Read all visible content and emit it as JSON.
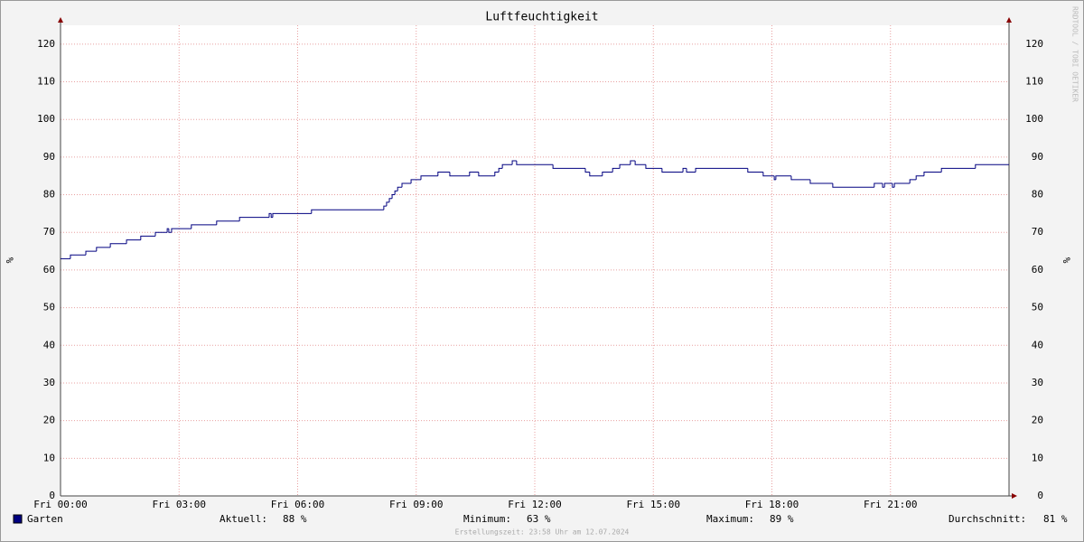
{
  "chart_data": {
    "type": "step-line",
    "title": "Luftfeuchtigkeit",
    "y_label": "%",
    "watermark": "RRDTOOL / TOBI OETIKER",
    "x": [
      0,
      0.25,
      0.64,
      0.91,
      1.26,
      1.67,
      2.03,
      2.4,
      2.7,
      2.74,
      2.81,
      3.31,
      3.95,
      4.53,
      5.28,
      5.33,
      5.37,
      6.35,
      8.18,
      8.25,
      8.32,
      8.39,
      8.46,
      8.53,
      8.64,
      8.87,
      9.12,
      9.55,
      9.85,
      10.35,
      10.58,
      10.99,
      11.09,
      11.18,
      11.43,
      11.54,
      12.46,
      13.28,
      13.39,
      13.71,
      13.97,
      14.15,
      14.42,
      14.54,
      14.81,
      15.22,
      15.75,
      15.84,
      16.07,
      17.39,
      17.78,
      18.06,
      18.1,
      18.49,
      18.97,
      19.54,
      20.59,
      20.8,
      20.85,
      21.05,
      21.1,
      21.49,
      21.65,
      21.85,
      22.29,
      23.15,
      24
    ],
    "series": [
      {
        "name": "Garten",
        "color": "#000080",
        "values": [
          63,
          64,
          65,
          66,
          67,
          68,
          69,
          70,
          71,
          70,
          71,
          72,
          73,
          74,
          75,
          74,
          75,
          76,
          77,
          78,
          79,
          80,
          81,
          82,
          83,
          84,
          85,
          86,
          85,
          86,
          85,
          86,
          87,
          88,
          89,
          88,
          87,
          86,
          85,
          86,
          87,
          88,
          89,
          88,
          87,
          86,
          87,
          86,
          87,
          86,
          85,
          84,
          85,
          84,
          83,
          82,
          83,
          82,
          83,
          82,
          83,
          84,
          85,
          86,
          87,
          88,
          88
        ]
      }
    ],
    "xlim": [
      0,
      24
    ],
    "xticks": [
      {
        "value": 0,
        "label": "Fri 00:00"
      },
      {
        "value": 3,
        "label": "Fri 03:00"
      },
      {
        "value": 6,
        "label": "Fri 06:00"
      },
      {
        "value": 9,
        "label": "Fri 09:00"
      },
      {
        "value": 12,
        "label": "Fri 12:00"
      },
      {
        "value": 15,
        "label": "Fri 15:00"
      },
      {
        "value": 18,
        "label": "Fri 18:00"
      },
      {
        "value": 21,
        "label": "Fri 21:00"
      }
    ],
    "ylim": [
      0,
      125
    ],
    "yticks": [
      0,
      10,
      20,
      30,
      40,
      50,
      60,
      70,
      80,
      90,
      100,
      110,
      120
    ],
    "grid": true,
    "stats": [
      {
        "label": "Aktuell:",
        "value": "88 %"
      },
      {
        "label": "Minimum:",
        "value": "63 %"
      },
      {
        "label": "Maximum:",
        "value": "89 %"
      },
      {
        "label": "Durchschnitt:",
        "value": "81 %"
      }
    ],
    "footer": "Erstellungszeit: 23:58 Uhr am 12.07.2024"
  }
}
